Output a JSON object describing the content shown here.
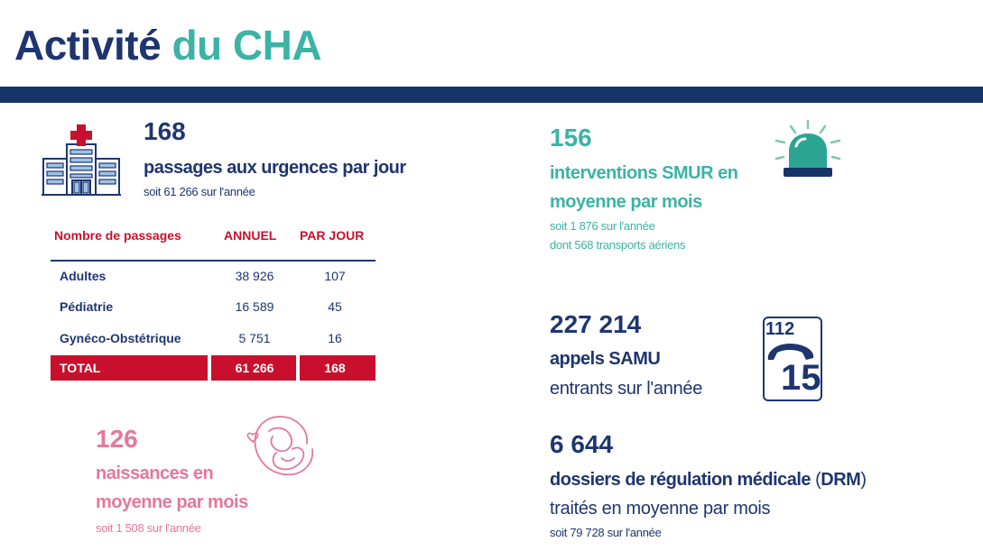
{
  "header": {
    "title_part1": "Activité",
    "title_part2": "du CHA"
  },
  "colors": {
    "navy": "#1e3570",
    "teal": "#3bb3a5",
    "pink": "#e5779a",
    "red": "#c8102e",
    "band": "#163466"
  },
  "urgences": {
    "value": "168",
    "label": "passages aux urgences par jour",
    "sub": "soit 61 266 sur l'année",
    "icon": "hospital-icon"
  },
  "table": {
    "headers": [
      "Nombre de passages",
      "ANNUEL",
      "PAR JOUR"
    ],
    "rows": [
      {
        "label": "Adultes",
        "annuel": "38 926",
        "jour": "107"
      },
      {
        "label": "Pédiatrie",
        "annuel": "16 589",
        "jour": "45"
      },
      {
        "label": "Gynéco-Obstétrique",
        "annuel": "5 751",
        "jour": "16"
      }
    ],
    "total": {
      "label": "TOTAL",
      "annuel": "61 266",
      "jour": "168"
    }
  },
  "naissances": {
    "value": "126",
    "label_line1": "naissances en",
    "label_line2": "moyenne par mois",
    "sub": "soit 1 508 sur l'année",
    "icon": "mother-baby-icon"
  },
  "smur": {
    "value": "156",
    "label_line1": "interventions SMUR en",
    "label_line2": "moyenne par mois",
    "sub1": "soit 1 876 sur l'année",
    "sub2": "dont 568 transports aériens",
    "icon": "siren-light-icon"
  },
  "samu": {
    "value": "227 214",
    "label": "appels SAMU",
    "sub": "entrants sur l'année",
    "icon": "phone-112-15-icon",
    "icon_num_top": "112",
    "icon_num_bottom": "15"
  },
  "drm": {
    "value": "6 644",
    "label_bold": "dossiers de régulation médicale",
    "label_paren_open": "(",
    "label_abbr": "DRM",
    "label_paren_close": ")",
    "sub_big": "traités en moyenne par mois",
    "sub": "soit 79 728 sur l'année"
  }
}
